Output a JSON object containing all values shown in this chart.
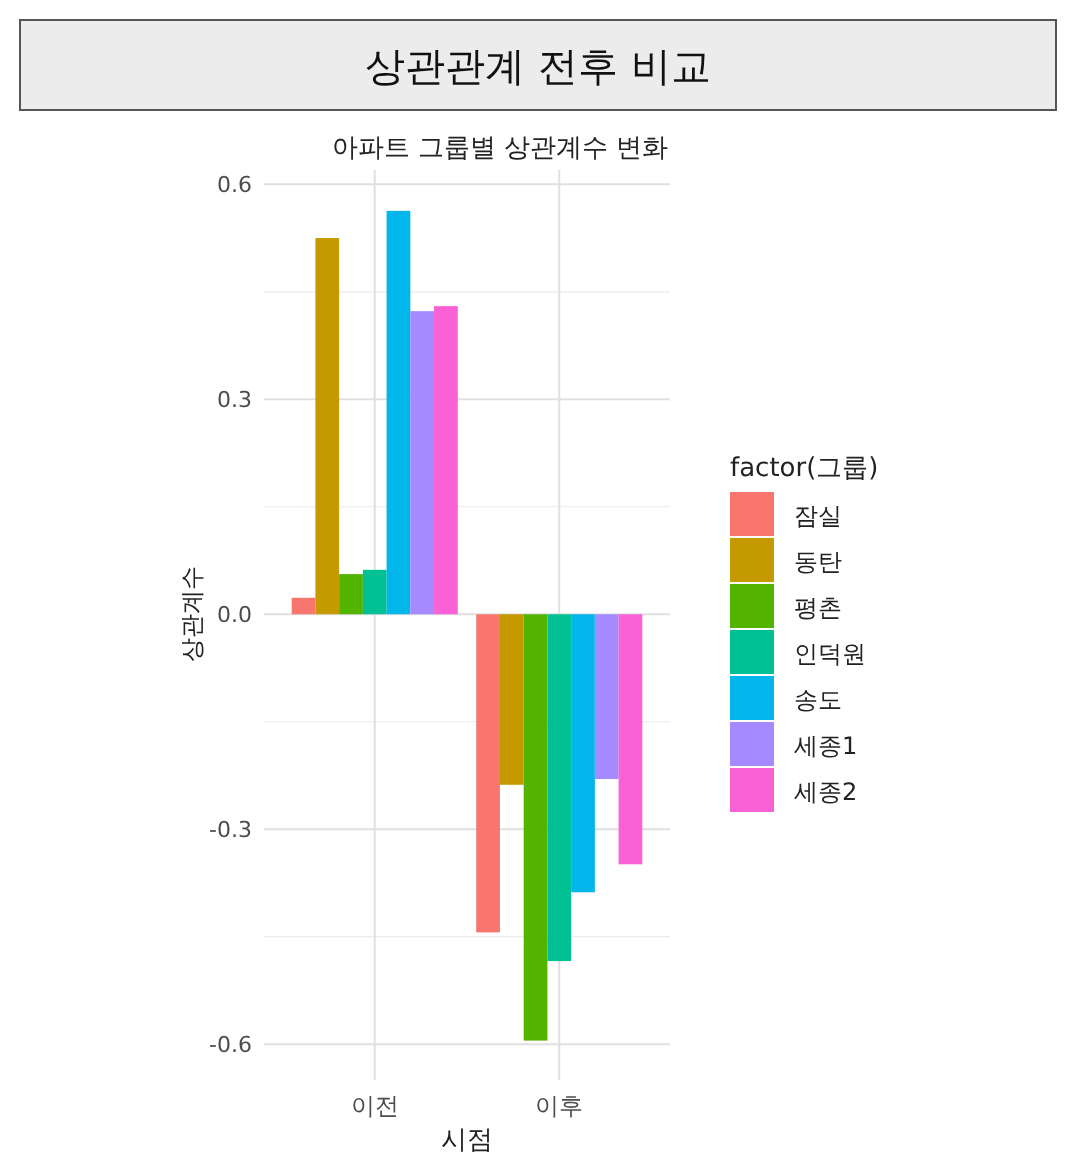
{
  "chart_data": {
    "type": "bar",
    "title": "상관관계 전후 비교",
    "subtitle": "아파트 그룹별 상관계수 변화",
    "xlabel": "시점",
    "ylabel": "상관계수",
    "legend_title": "factor(그룹)",
    "categories": [
      "이전",
      "이후"
    ],
    "series": [
      {
        "name": "잠실",
        "color": "#f8766d",
        "values": [
          0.023,
          -0.444
        ]
      },
      {
        "name": "동탄",
        "color": "#c49a00",
        "values": [
          0.525,
          -0.238
        ]
      },
      {
        "name": "평촌",
        "color": "#53b400",
        "values": [
          0.056,
          -0.595
        ]
      },
      {
        "name": "인덕원",
        "color": "#00c094",
        "values": [
          0.062,
          -0.484
        ]
      },
      {
        "name": "송도",
        "color": "#00b6eb",
        "values": [
          0.563,
          -0.388
        ]
      },
      {
        "name": "세종1",
        "color": "#a58aff",
        "values": [
          0.423,
          -0.23
        ]
      },
      {
        "name": "세종2",
        "color": "#fb61d7",
        "values": [
          0.43,
          -0.349
        ]
      }
    ],
    "ylim": [
      -0.65,
      0.62
    ],
    "yticks": [
      {
        "value": -0.6,
        "label": "-0.6"
      },
      {
        "value": -0.3,
        "label": "-0.3"
      },
      {
        "value": 0,
        "label": "0.0"
      },
      {
        "value": 0.3,
        "label": "0.3"
      },
      {
        "value": 0.6,
        "label": "0.6"
      }
    ],
    "grid": true,
    "legend": "right"
  }
}
